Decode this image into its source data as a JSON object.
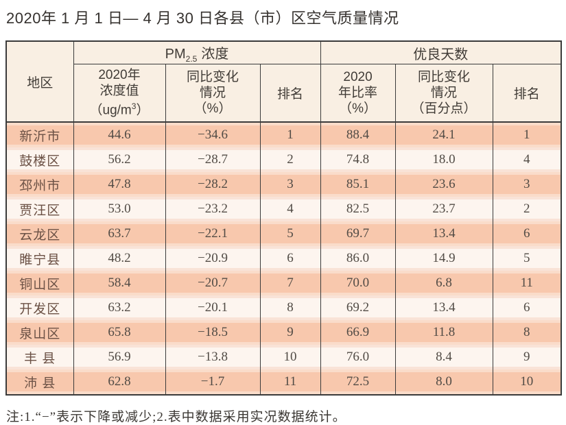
{
  "title": "2020年 1 月 1 日— 4 月 30 日各县（市）区空气质量情况",
  "table": {
    "corner_header": "地区",
    "group_headers": {
      "pm25": {
        "prefix": "PM",
        "sub": "2.5",
        "suffix": "浓度"
      },
      "good_days": "优良天数"
    },
    "sub_headers": {
      "pm_value": {
        "line1": "2020年",
        "line2": "浓度值",
        "unit_pre": "（ug/m",
        "unit_sup": "3",
        "unit_post": "）"
      },
      "pm_change": {
        "line1": "同比变化",
        "line2": "情况",
        "line3": "（%）"
      },
      "pm_rank": "排名",
      "gd_ratio": {
        "line1": "2020",
        "line2": "年比率",
        "line3": "（%）"
      },
      "gd_change": {
        "line1": "同比变化",
        "line2": "情况",
        "line3": "（百分点）"
      },
      "gd_rank": "排名"
    },
    "rows": [
      {
        "region": "新沂市",
        "pm_value": "44.6",
        "pm_change": "−34.6",
        "pm_rank": "1",
        "gd_ratio": "88.4",
        "gd_change": "24.1",
        "gd_rank": "1"
      },
      {
        "region": "鼓楼区",
        "pm_value": "56.2",
        "pm_change": "−28.7",
        "pm_rank": "2",
        "gd_ratio": "74.8",
        "gd_change": "18.0",
        "gd_rank": "4"
      },
      {
        "region": "邳州市",
        "pm_value": "47.8",
        "pm_change": "−28.2",
        "pm_rank": "3",
        "gd_ratio": "85.1",
        "gd_change": "23.6",
        "gd_rank": "3"
      },
      {
        "region": "贾汪区",
        "pm_value": "53.0",
        "pm_change": "−23.2",
        "pm_rank": "4",
        "gd_ratio": "82.5",
        "gd_change": "23.7",
        "gd_rank": "2"
      },
      {
        "region": "云龙区",
        "pm_value": "63.7",
        "pm_change": "−22.1",
        "pm_rank": "5",
        "gd_ratio": "69.7",
        "gd_change": "13.4",
        "gd_rank": "6"
      },
      {
        "region": "睢宁县",
        "pm_value": "48.2",
        "pm_change": "−20.9",
        "pm_rank": "6",
        "gd_ratio": "86.0",
        "gd_change": "14.9",
        "gd_rank": "5"
      },
      {
        "region": "铜山区",
        "pm_value": "58.4",
        "pm_change": "−20.7",
        "pm_rank": "7",
        "gd_ratio": "70.0",
        "gd_change": "6.8",
        "gd_rank": "11"
      },
      {
        "region": "开发区",
        "pm_value": "63.2",
        "pm_change": "−20.1",
        "pm_rank": "8",
        "gd_ratio": "69.2",
        "gd_change": "13.4",
        "gd_rank": "6"
      },
      {
        "region": "泉山区",
        "pm_value": "65.8",
        "pm_change": "−18.5",
        "pm_rank": "9",
        "gd_ratio": "66.9",
        "gd_change": "11.8",
        "gd_rank": "8"
      },
      {
        "region": "丰 县",
        "pm_value": "56.9",
        "pm_change": "−13.8",
        "pm_rank": "10",
        "gd_ratio": "76.0",
        "gd_change": "8.4",
        "gd_rank": "9"
      },
      {
        "region": "沛 县",
        "pm_value": "62.8",
        "pm_change": "−1.7",
        "pm_rank": "11",
        "gd_ratio": "72.5",
        "gd_change": "8.0",
        "gd_rank": "10"
      }
    ]
  },
  "footnote": "注:1.“−”表示下降或减少;2.表中数据采用实况数据统计。",
  "colors": {
    "row_stripe_salmon": "#f8c8ad",
    "row_stripe_light": "#fdf5ef",
    "header_cream": "#f9efe3",
    "border_dark": "#3a3a3a",
    "region_text": "#6b5145"
  }
}
